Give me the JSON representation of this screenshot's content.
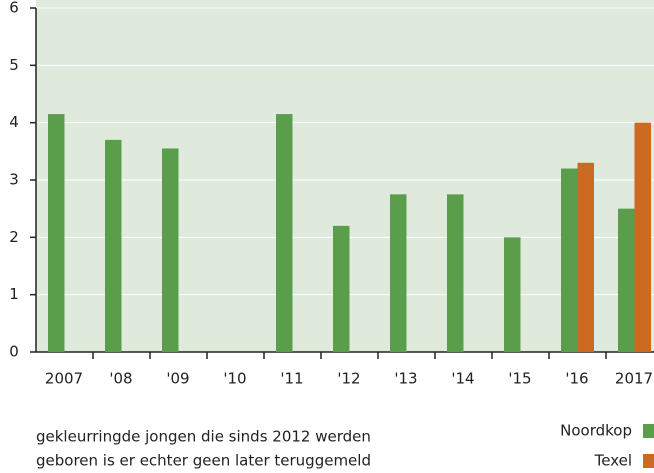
{
  "chart_data": {
    "type": "bar",
    "categories": [
      "2007",
      "'08",
      "'09",
      "'10",
      "'11",
      "'12",
      "'13",
      "'14",
      "'15",
      "'16",
      "2017"
    ],
    "series": [
      {
        "name": "Noordkop",
        "color": "#5a9e4b",
        "values": [
          4.15,
          3.7,
          3.55,
          null,
          4.15,
          2.2,
          2.75,
          2.75,
          2.0,
          3.2,
          2.5
        ]
      },
      {
        "name": "Texel",
        "color": "#cc6a22",
        "values": [
          null,
          null,
          null,
          null,
          null,
          null,
          null,
          null,
          null,
          3.3,
          4.0
        ]
      }
    ],
    "ylim": [
      0,
      6
    ],
    "yticks": [
      0,
      1,
      2,
      3,
      4,
      5,
      6
    ],
    "grid": true,
    "annotations": [
      "gekleurringde jongen die sinds 2012 werden",
      "geboren is er echter geen later teruggemeld"
    ]
  }
}
